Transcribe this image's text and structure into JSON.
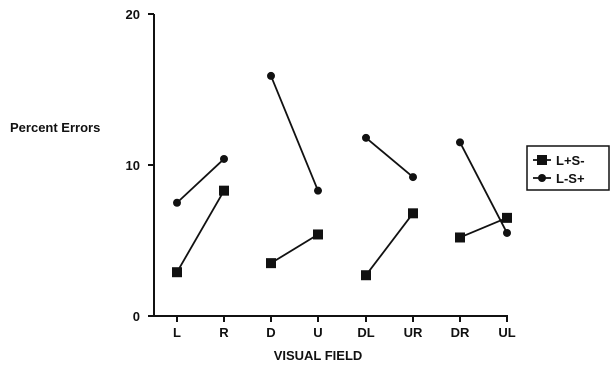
{
  "chart_data": {
    "type": "line",
    "ylabel": "Percent Errors",
    "xlabel": "VISUAL FIELD",
    "ylim": [
      0,
      20
    ],
    "yticks": [
      0,
      10,
      20
    ],
    "categories": [
      "L",
      "R",
      "D",
      "U",
      "DL",
      "UR",
      "DR",
      "UL"
    ],
    "pairs": [
      [
        0,
        1
      ],
      [
        2,
        3
      ],
      [
        4,
        5
      ],
      [
        6,
        7
      ]
    ],
    "series": [
      {
        "name": "L+S-",
        "marker": "square",
        "values": [
          2.9,
          8.3,
          3.5,
          5.4,
          2.7,
          6.8,
          5.2,
          6.5
        ]
      },
      {
        "name": "L-S+",
        "marker": "circle",
        "values": [
          7.5,
          10.4,
          15.9,
          8.3,
          11.8,
          9.2,
          11.5,
          5.5
        ]
      }
    ],
    "grid": false,
    "legend_position": "right"
  }
}
